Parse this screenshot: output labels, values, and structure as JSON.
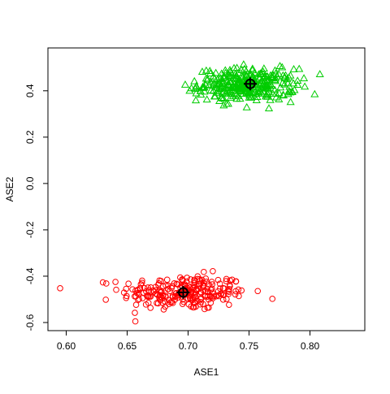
{
  "chart_data": {
    "type": "scatter",
    "title": "",
    "xlabel": "ASE1",
    "ylabel": "ASE2",
    "xlim": [
      0.585,
      0.845
    ],
    "ylim": [
      -0.635,
      0.585
    ],
    "xticks": [
      0.6,
      0.65,
      0.7,
      0.75,
      0.8
    ],
    "xtick_labels": [
      "0.60",
      "0.65",
      "0.70",
      "0.75",
      "0.80"
    ],
    "yticks": [
      -0.6,
      -0.4,
      -0.2,
      0.0,
      0.2,
      0.4
    ],
    "ytick_labels": [
      "-0.6",
      "-0.4",
      "-0.2",
      "0.0",
      "0.2",
      "0.4"
    ],
    "grid": false,
    "legend": "none",
    "series": [
      {
        "marker": "open-circle",
        "color": "#FF0000",
        "count": 250,
        "x_center": 0.697,
        "x_spread": 0.026,
        "x_range": [
          0.595,
          0.772
        ],
        "y_center": -0.47,
        "y_spread": 0.038,
        "y_range": [
          -0.595,
          -0.345
        ]
      },
      {
        "marker": "open-triangle",
        "color": "#00CC00",
        "count": 320,
        "x_center": 0.748,
        "x_spread": 0.02,
        "x_range": [
          0.685,
          0.835
        ],
        "y_center": 0.425,
        "y_spread": 0.035,
        "y_range": [
          0.278,
          0.54
        ]
      }
    ],
    "centroids": [
      {
        "x": 0.696,
        "y": -0.47,
        "marker": "circled-cross",
        "color": "#000000"
      },
      {
        "x": 0.751,
        "y": 0.43,
        "marker": "circled-cross",
        "color": "#000000"
      }
    ]
  }
}
